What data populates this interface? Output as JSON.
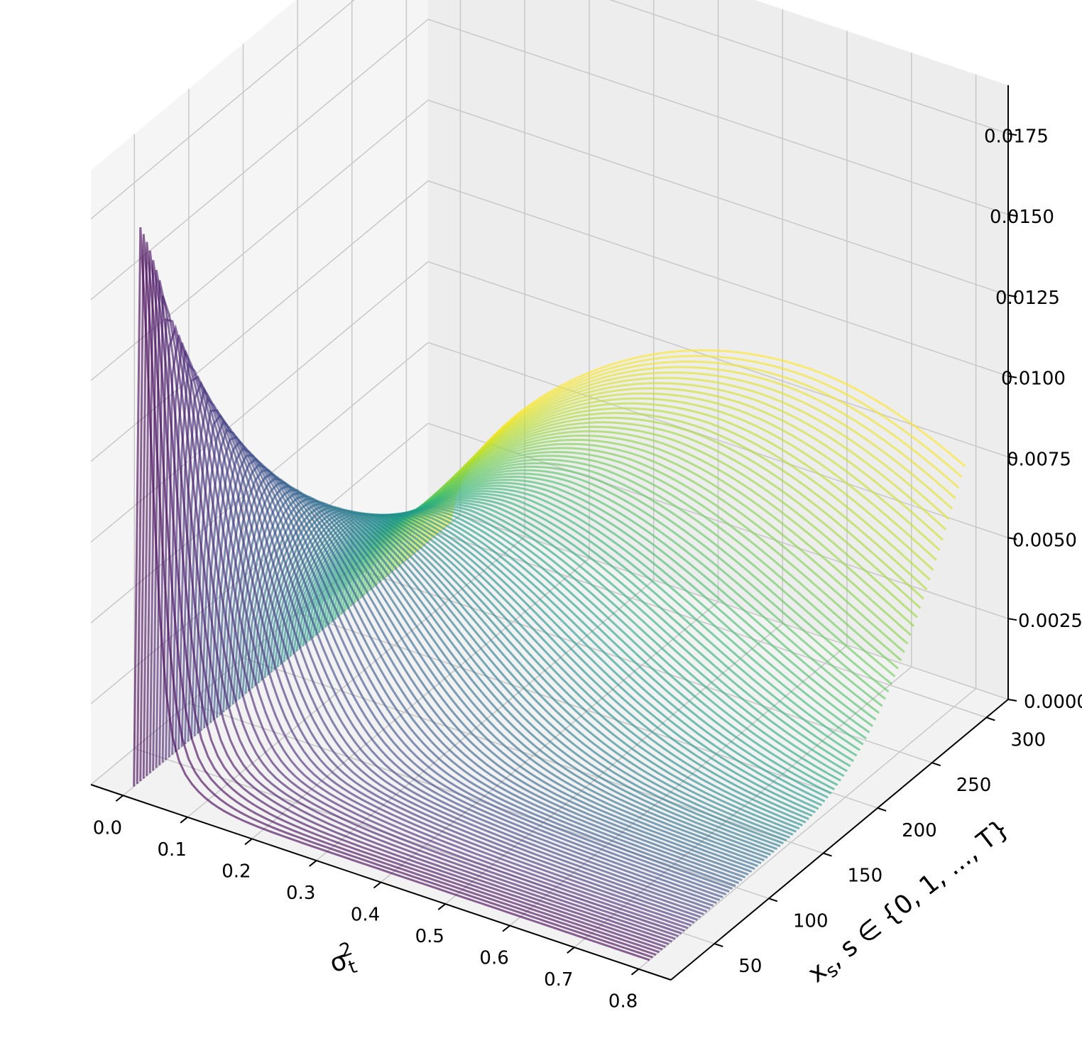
{
  "chart_data": {
    "type": "surface-lines-3d",
    "title": "",
    "xlabel": "σ",
    "xlabel_sup": "2",
    "xlabel_sub": "t",
    "ylabel": "x",
    "ylabel_sub": "s",
    "ylabel_rest": ", s ∈ {0, 1, ..., T}",
    "zlabel": "",
    "xlim": [
      -0.05,
      0.85
    ],
    "ylim": [
      10,
      320
    ],
    "zlim": [
      0,
      0.019
    ],
    "x_ticks": [
      "0.0",
      "0.1",
      "0.2",
      "0.3",
      "0.4",
      "0.5",
      "0.6",
      "0.7",
      "0.8"
    ],
    "y_ticks": [
      "50",
      "100",
      "150",
      "200",
      "250",
      "300"
    ],
    "z_ticks": [
      "0.0000",
      "0.0025",
      "0.0050",
      "0.0075",
      "0.0100",
      "0.0125",
      "0.0150",
      "0.0175"
    ],
    "colormap": "viridis",
    "grid": true,
    "series_description": "One curve per s: density over σ² from 0.0 to 0.8, sharp peak (~0.018) near σ²≈0.0 for small s, flattening and rising toward larger σ² as s grows; color encodes s",
    "s_range": [
      20,
      310
    ],
    "s_count": 100,
    "x_range": [
      0.0,
      0.8
    ]
  }
}
